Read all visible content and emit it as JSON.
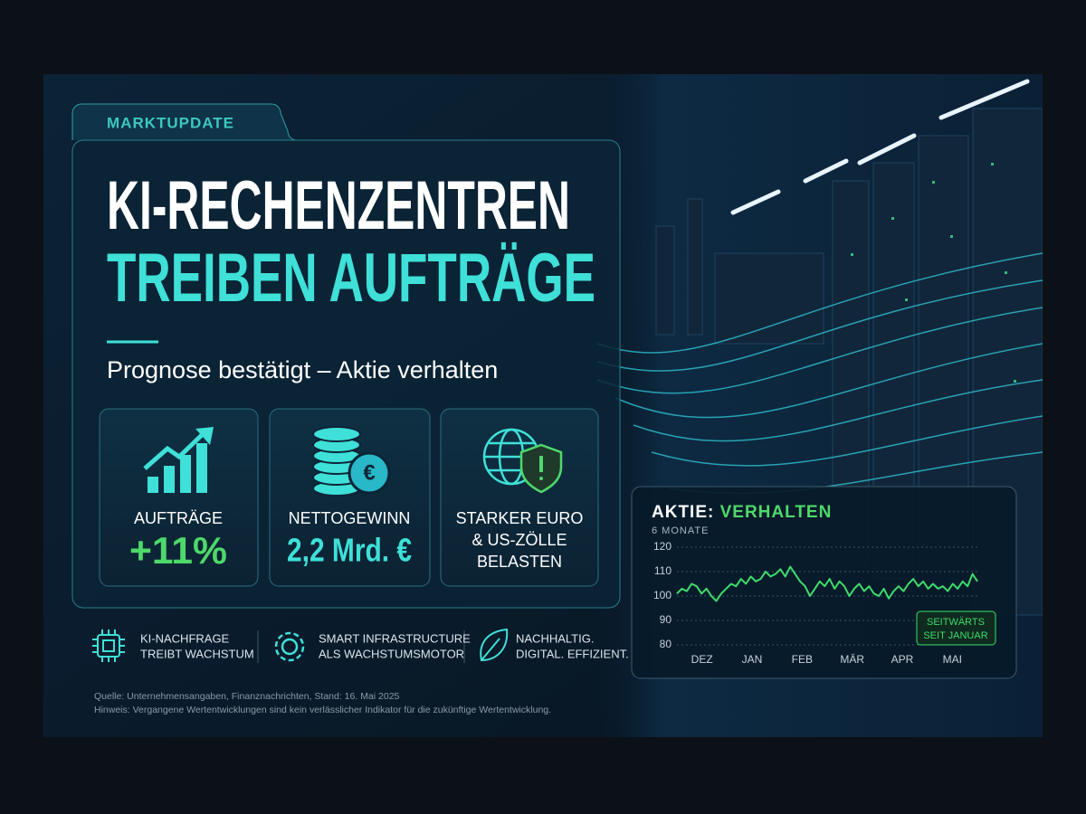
{
  "tag": "MARKTUPDATE",
  "headline": {
    "line1": "KI-RECHENZENTREN",
    "line2": "TREIBEN AUFTRÄGE"
  },
  "subtitle": "Prognose bestätigt – Aktie verhalten",
  "kpis": [
    {
      "label": "AUFTRÄGE",
      "value": "+11%"
    },
    {
      "label": "NETTOGEWINN",
      "value": "2,2 Mrd. €"
    },
    {
      "label_lines": [
        "STARKER EURO",
        "& US-ZÖLLE",
        "BELASTEN"
      ]
    }
  ],
  "features": [
    {
      "lines": [
        "KI-NACHFRAGE",
        "TREIBT WACHSTUM"
      ]
    },
    {
      "lines": [
        "SMART INFRASTRUCTURE",
        "ALS WACHSTUMSMOTOR"
      ]
    },
    {
      "lines": [
        "NACHHALTIG.",
        "DIGITAL. EFFIZIENT."
      ]
    }
  ],
  "footnotes": [
    "Quelle: Unternehmensangaben, Finanznachrichten, Stand: 16. Mai 2025",
    "Hinweis: Vergangene Wertentwicklungen sind kein verlässlicher Indikator für die zukünftige Wertentwicklung."
  ],
  "chart_data": {
    "type": "line",
    "title": "AKTIE:",
    "title_highlight": "VERHALTEN",
    "subtitle": "6 MONATE",
    "xticks": [
      "DEZ",
      "JAN",
      "FEB",
      "MÄR",
      "APR",
      "MAI"
    ],
    "values": [
      101,
      103,
      102,
      105,
      104,
      101,
      103,
      100,
      98,
      101,
      103,
      105,
      104,
      107,
      105,
      108,
      106,
      107,
      110,
      108,
      109,
      111,
      108,
      112,
      109,
      106,
      104,
      100,
      103,
      106,
      104,
      107,
      103,
      106,
      104,
      100,
      103,
      105,
      102,
      104,
      101,
      100,
      103,
      99,
      102,
      104,
      102,
      105,
      107,
      104,
      106,
      103,
      105,
      103,
      104,
      102,
      105,
      103,
      106,
      104,
      109,
      106
    ],
    "color": "#3ddc6a",
    "ylim": [
      80,
      120
    ],
    "yticks": [
      80,
      90,
      100,
      110,
      120
    ],
    "grid": true,
    "annotation": [
      "SEITWÄRTS",
      "SEIT JANUAR"
    ]
  }
}
